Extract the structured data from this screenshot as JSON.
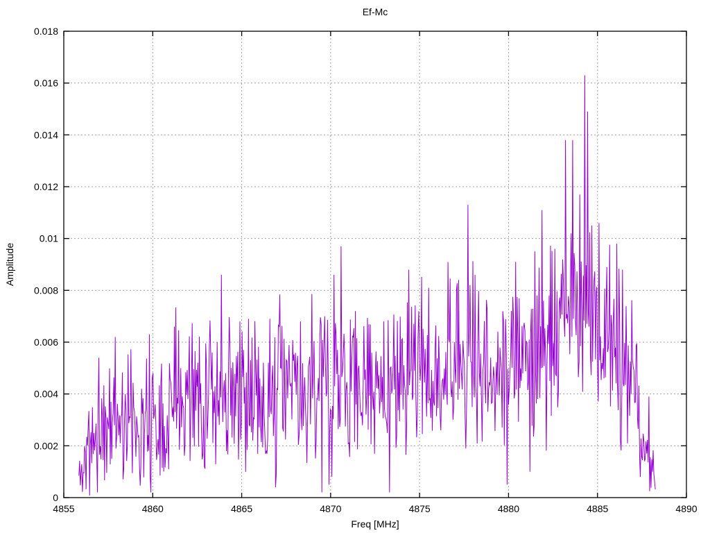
{
  "chart_data": {
    "type": "line",
    "title": "Ef-Mc",
    "xlabel": "Freq [MHz]",
    "ylabel": "Amplitude",
    "xlim": [
      4855,
      4890
    ],
    "ylim": [
      0,
      0.018
    ],
    "xticks": [
      4855,
      4860,
      4865,
      4870,
      4875,
      4880,
      4885,
      4890
    ],
    "xtick_labels": [
      "4855",
      "4860",
      "4865",
      "4870",
      "4875",
      "4880",
      "4885",
      "4890"
    ],
    "yticks": [
      0,
      0.002,
      0.004,
      0.006,
      0.008,
      0.01,
      0.012,
      0.014,
      0.016,
      0.018
    ],
    "ytick_labels": [
      "0",
      "0.002",
      "0.004",
      "0.006",
      "0.008",
      "0.01",
      "0.012",
      "0.014",
      "0.016",
      "0.018"
    ],
    "grid": true,
    "legend": "none",
    "line_color": "#9400D3",
    "grid_color": "#a0a0a0",
    "border_color": "#000000",
    "series_name": "Ef-Mc",
    "x_start": 4855.85,
    "x_end": 4888.25,
    "n_points": 810,
    "noise_seed": 11,
    "envelope": [
      [
        4855.85,
        0.0008,
        0.0007
      ],
      [
        4856.3,
        0.0018,
        0.0013
      ],
      [
        4857.0,
        0.0024,
        0.0016
      ],
      [
        4858.0,
        0.0032,
        0.0019
      ],
      [
        4859.0,
        0.003,
        0.0018
      ],
      [
        4860.0,
        0.0032,
        0.0019
      ],
      [
        4861.0,
        0.0036,
        0.0019
      ],
      [
        4862.0,
        0.004,
        0.0019
      ],
      [
        4863.0,
        0.004,
        0.0019
      ],
      [
        4864.0,
        0.0038,
        0.0019
      ],
      [
        4865.0,
        0.0038,
        0.0019
      ],
      [
        4866.0,
        0.004,
        0.0019
      ],
      [
        4867.0,
        0.0041,
        0.002
      ],
      [
        4868.0,
        0.0042,
        0.002
      ],
      [
        4869.0,
        0.004,
        0.0021
      ],
      [
        4870.0,
        0.0042,
        0.0022
      ],
      [
        4871.0,
        0.0045,
        0.002
      ],
      [
        4872.0,
        0.0043,
        0.002
      ],
      [
        4873.0,
        0.0042,
        0.0021
      ],
      [
        4874.0,
        0.0046,
        0.0021
      ],
      [
        4875.0,
        0.0044,
        0.0021
      ],
      [
        4876.0,
        0.0046,
        0.0021
      ],
      [
        4877.0,
        0.005,
        0.0022
      ],
      [
        4878.0,
        0.0051,
        0.0022
      ],
      [
        4879.0,
        0.0049,
        0.0022
      ],
      [
        4880.0,
        0.0051,
        0.0023
      ],
      [
        4881.0,
        0.0052,
        0.0023
      ],
      [
        4882.0,
        0.0056,
        0.0024
      ],
      [
        4883.0,
        0.0068,
        0.0028
      ],
      [
        4884.0,
        0.0082,
        0.0032
      ],
      [
        4884.5,
        0.008,
        0.003
      ],
      [
        4885.0,
        0.0072,
        0.0028
      ],
      [
        4886.0,
        0.006,
        0.0026
      ],
      [
        4887.0,
        0.0038,
        0.002
      ],
      [
        4887.6,
        0.0024,
        0.0013
      ],
      [
        4888.1,
        0.0012,
        0.0007
      ],
      [
        4888.25,
        0.0007,
        0.0003
      ]
    ],
    "peaks": [
      [
        4857.9,
        0.0062
      ],
      [
        4859.8,
        0.0063
      ],
      [
        4861.2,
        0.0066
      ],
      [
        4863.85,
        0.0086
      ],
      [
        4864.9,
        0.0068
      ],
      [
        4865.4,
        0.0069
      ],
      [
        4866.6,
        0.0069
      ],
      [
        4868.3,
        0.0068
      ],
      [
        4870.2,
        0.0086
      ],
      [
        4870.6,
        0.0097
      ],
      [
        4871.4,
        0.0072
      ],
      [
        4873.0,
        0.0068
      ],
      [
        4874.4,
        0.0088
      ],
      [
        4875.5,
        0.0081
      ],
      [
        4877.2,
        0.0084
      ],
      [
        4877.7,
        0.0113
      ],
      [
        4878.1,
        0.0086
      ],
      [
        4880.4,
        0.0091
      ],
      [
        4881.5,
        0.0095
      ],
      [
        4881.9,
        0.0111
      ],
      [
        4882.6,
        0.0096
      ],
      [
        4883.2,
        0.0138
      ],
      [
        4883.6,
        0.0138
      ],
      [
        4884.0,
        0.0117
      ],
      [
        4884.3,
        0.0163
      ],
      [
        4884.45,
        0.0149
      ],
      [
        4884.7,
        0.0105
      ],
      [
        4885.1,
        0.0106
      ],
      [
        4886.1,
        0.0098
      ],
      [
        4886.4,
        0.0088
      ],
      [
        4887.9,
        0.0039
      ]
    ],
    "dips": [
      [
        4856.9,
        0.0002
      ],
      [
        4859.9,
        0.0002
      ],
      [
        4866.9,
        0.0004
      ],
      [
        4869.5,
        0.0002
      ],
      [
        4869.9,
        0.0005
      ],
      [
        4873.3,
        0.0002
      ],
      [
        4879.9,
        0.0005
      ],
      [
        4881.2,
        0.001
      ],
      [
        4887.4,
        0.0008
      ]
    ]
  }
}
